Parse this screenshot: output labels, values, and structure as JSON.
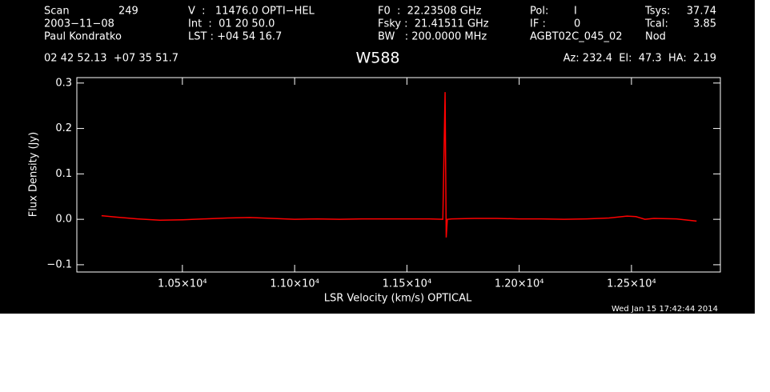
{
  "header": {
    "rows": [
      [
        "Scan",
        "249",
        "V  :   11476.0 OPTI−HEL",
        "F0  :  22.23508 GHz",
        "Pol:",
        "I",
        "Tsys:",
        "37.74"
      ],
      [
        "2003−11−08",
        "Int  :  01 20 50.0",
        "Fsky :  21.41511 GHz",
        "IF :",
        "0",
        "Tcal:",
        "3.85"
      ],
      [
        "Paul Kondratko",
        "LST : +04 54 16.7",
        "BW   : 200.0000 MHz",
        "AGBT02C_045_02",
        "Nod"
      ]
    ],
    "coords": "02 42 52.13  +07 35 51.7",
    "pointing": "Az: 232.4  El:  47.3  HA:  2.19",
    "timestamp": "Wed Jan 15 17:42:44 2014"
  },
  "chart_data": {
    "type": "line",
    "title": "W588",
    "x_label": "LSR Velocity (km/s) OPTICAL",
    "y_label": "Flux Density (Jy)",
    "xlim": [
      10030,
      12896
    ],
    "ylim": [
      -0.116,
      0.312
    ],
    "xticks": [
      {
        "value": 10500,
        "label": "1.05×10⁴"
      },
      {
        "value": 11000,
        "label": "1.10×10⁴"
      },
      {
        "value": 11500,
        "label": "1.15×10⁴"
      },
      {
        "value": 12000,
        "label": "1.20×10⁴"
      },
      {
        "value": 12500,
        "label": "1.25×10⁴"
      }
    ],
    "yticks": [
      {
        "value": -0.1,
        "label": "−0.1"
      },
      {
        "value": 0,
        "label": "0.0"
      },
      {
        "value": 0.1,
        "label": "0.1"
      },
      {
        "value": 0.2,
        "label": "0.2"
      },
      {
        "value": 0.3,
        "label": "0.3"
      }
    ],
    "series": [
      {
        "name": "spectrum",
        "color": "#ff0000",
        "x": [
          10140,
          10200,
          10300,
          10400,
          10500,
          10600,
          10700,
          10800,
          10900,
          11000,
          11100,
          11200,
          11300,
          11400,
          11500,
          11600,
          11660,
          11670,
          11675,
          11680,
          11700,
          11800,
          11900,
          12000,
          12100,
          12200,
          12300,
          12400,
          12480,
          12520,
          12560,
          12600,
          12700,
          12790
        ],
        "values": [
          0.008,
          0.005,
          0.001,
          -0.002,
          -0.001,
          0.001,
          0.003,
          0.004,
          0.002,
          0.0,
          0.001,
          0.0,
          0.001,
          0.001,
          0.001,
          0.001,
          0.0,
          0.28,
          -0.04,
          0.0,
          0.001,
          0.002,
          0.002,
          0.001,
          0.001,
          0.0,
          0.001,
          0.003,
          0.007,
          0.006,
          0.0,
          0.002,
          0.001,
          -0.004
        ]
      }
    ]
  }
}
